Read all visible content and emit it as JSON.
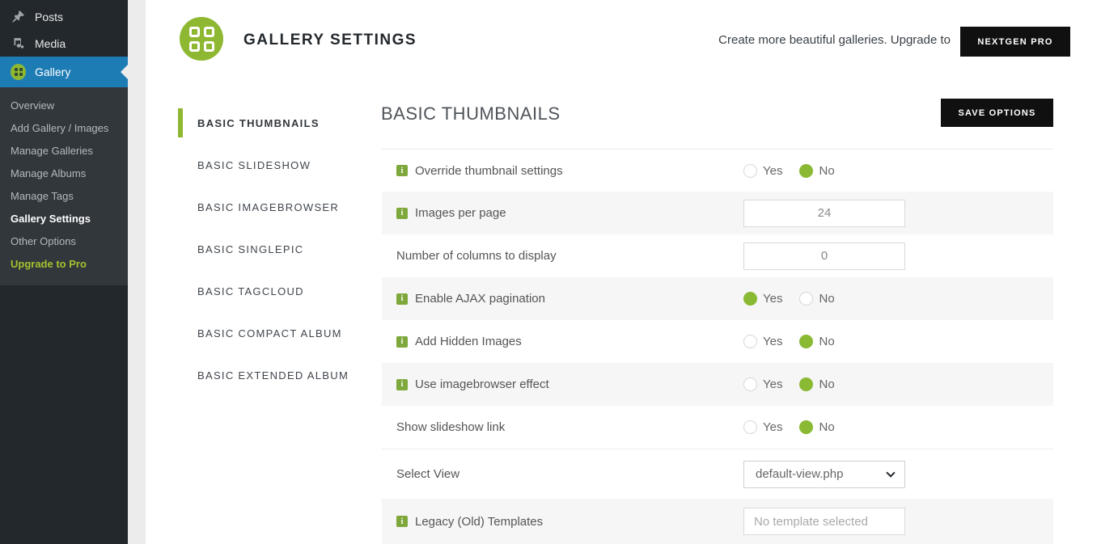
{
  "colors": {
    "accent_green": "#8fb832",
    "radio_green": "#8ab933",
    "active_blue": "#1e7cb5",
    "button_black": "#101010",
    "sidebar_dark": "#23282d",
    "submenu_bg": "#32373c"
  },
  "sidebar": {
    "items": [
      {
        "id": "posts",
        "label": "Posts",
        "icon": "pushpin-icon",
        "active": false
      },
      {
        "id": "media",
        "label": "Media",
        "icon": "media-icon",
        "active": false
      },
      {
        "id": "gallery",
        "label": "Gallery",
        "icon": "gallery-icon",
        "active": true
      }
    ],
    "submenu": [
      {
        "label": "Overview"
      },
      {
        "label": "Add Gallery / Images"
      },
      {
        "label": "Manage Galleries"
      },
      {
        "label": "Manage Albums"
      },
      {
        "label": "Manage Tags"
      },
      {
        "label": "Gallery Settings",
        "active": true
      },
      {
        "label": "Other Options"
      },
      {
        "label": "Upgrade to Pro",
        "highlight": true
      }
    ]
  },
  "header": {
    "title": "GALLERY SETTINGS",
    "upgrade_text": "Create more beautiful galleries. Upgrade to",
    "pro_button_label": "NEXTGEN PRO"
  },
  "tabs": {
    "active_index": 0,
    "items": [
      "BASIC THUMBNAILS",
      "BASIC SLIDESHOW",
      "BASIC IMAGEBROWSER",
      "BASIC SINGLEPIC",
      "BASIC TAGCLOUD",
      "BASIC COMPACT ALBUM",
      "BASIC EXTENDED ALBUM"
    ]
  },
  "panel": {
    "heading": "BASIC THUMBNAILS",
    "save_button_label": "SAVE OPTIONS",
    "radio_options": [
      "Yes",
      "No"
    ],
    "rows": [
      {
        "label": "Override thumbnail settings",
        "info": true,
        "control": "radio",
        "value": "No",
        "shaded": false
      },
      {
        "label": "Images per page",
        "info": true,
        "control": "input",
        "value": "24",
        "shaded": true
      },
      {
        "label": "Number of columns to display",
        "info": false,
        "control": "input",
        "value": "0",
        "shaded": false
      },
      {
        "label": "Enable AJAX pagination",
        "info": true,
        "control": "radio",
        "value": "Yes",
        "shaded": true
      },
      {
        "label": "Add Hidden Images",
        "info": true,
        "control": "radio",
        "value": "No",
        "shaded": false
      },
      {
        "label": "Use imagebrowser effect",
        "info": true,
        "control": "radio",
        "value": "No",
        "shaded": true
      },
      {
        "label": "Show slideshow link",
        "info": false,
        "control": "radio",
        "value": "No",
        "shaded": false
      },
      {
        "label": "Select View",
        "info": false,
        "control": "select",
        "value": "default-view.php",
        "shaded": false
      },
      {
        "label": "Legacy (Old) Templates",
        "info": true,
        "control": "input_placeholder",
        "placeholder": "No template selected",
        "shaded": true
      }
    ]
  }
}
